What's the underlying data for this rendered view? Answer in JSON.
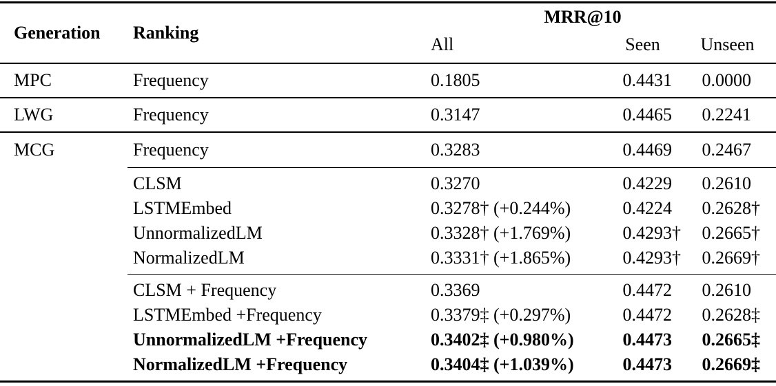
{
  "header": {
    "generation": "Generation",
    "ranking": "Ranking",
    "metric_group": "MRR@10",
    "col_all": "All",
    "col_seen": "Seen",
    "col_unseen": "Unseen"
  },
  "rows": [
    {
      "generation": "MPC",
      "ranking": "Frequency",
      "all": "0.1805",
      "seen": "0.4431",
      "seen_mark": "",
      "unseen": "0.0000",
      "unseen_mark": ""
    },
    {
      "generation": "LWG",
      "ranking": "Frequency",
      "all": "0.3147",
      "seen": "0.4465",
      "seen_mark": "",
      "unseen": "0.2241",
      "unseen_mark": ""
    },
    {
      "generation": "MCG",
      "ranking": "Frequency",
      "all": "0.3283",
      "seen": "0.4469",
      "seen_mark": "",
      "unseen": "0.2467",
      "unseen_mark": ""
    },
    {
      "ranking": "CLSM",
      "all": "0.3270",
      "seen": "0.4229",
      "seen_mark": "",
      "unseen": "0.2610",
      "unseen_mark": ""
    },
    {
      "ranking": "LSTMEmbed",
      "all": "0.3278† (+0.244%)",
      "seen": "0.4224",
      "seen_mark": "",
      "unseen": "0.2628",
      "unseen_mark": "†"
    },
    {
      "ranking": "UnnormalizedLM",
      "all": "0.3328† (+1.769%)",
      "seen": "0.4293",
      "seen_mark": "†",
      "unseen": "0.2665",
      "unseen_mark": "†"
    },
    {
      "ranking": "NormalizedLM",
      "all": "0.3331† (+1.865%)",
      "seen": "0.4293",
      "seen_mark": "†",
      "unseen": "0.2669",
      "unseen_mark": "†"
    },
    {
      "ranking": "CLSM + Frequency",
      "all": "0.3369",
      "seen": "0.4472",
      "seen_mark": "",
      "unseen": "0.2610",
      "unseen_mark": ""
    },
    {
      "ranking": "LSTMEmbed +Frequency",
      "all": "0.3379‡ (+0.297%)",
      "seen": "0.4472",
      "seen_mark": "",
      "unseen": "0.2628",
      "unseen_mark": "‡"
    },
    {
      "ranking": "UnnormalizedLM +Frequency",
      "all": "0.3402‡ (+0.980%)",
      "seen": "0.4473",
      "seen_mark": "",
      "unseen": "0.2665",
      "unseen_mark": "‡"
    },
    {
      "ranking": "NormalizedLM +Frequency",
      "all": "0.3404‡ (+1.039%)",
      "seen": "0.4473",
      "seen_mark": "",
      "unseen": "0.2669",
      "unseen_mark": "‡"
    }
  ]
}
